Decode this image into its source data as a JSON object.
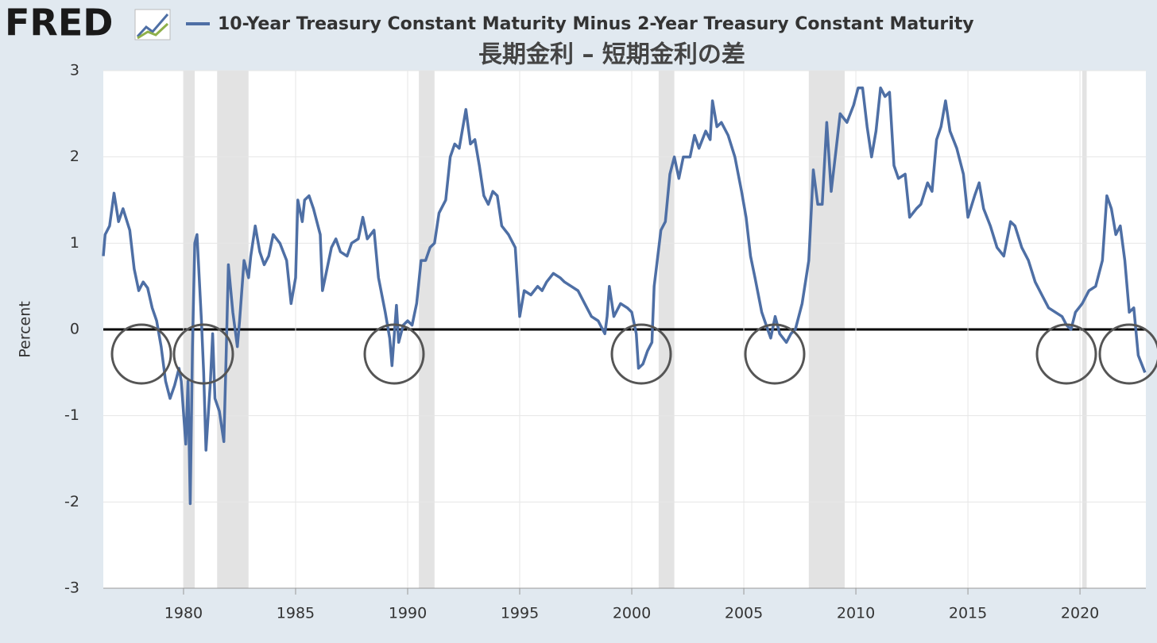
{
  "chart_data": {
    "type": "line",
    "logo": "FRED",
    "title": "長期金利 – 短期金利の差",
    "ylabel": "Percent",
    "series": [
      {
        "name": "10-Year Treasury Constant Maturity Minus 2-Year Treasury Constant Maturity",
        "color": "#4e6fa5",
        "x": [
          1976.42,
          1976.5,
          1976.7,
          1976.9,
          1977.1,
          1977.3,
          1977.6,
          1977.8,
          1978.0,
          1978.2,
          1978.4,
          1978.6,
          1978.8,
          1979.0,
          1979.2,
          1979.4,
          1979.6,
          1979.8,
          1979.9,
          1980.1,
          1980.2,
          1980.3,
          1980.4,
          1980.5,
          1980.6,
          1980.8,
          1980.9,
          1981.0,
          1981.2,
          1981.3,
          1981.4,
          1981.6,
          1981.8,
          1981.9,
          1982.0,
          1982.2,
          1982.4,
          1982.5,
          1982.7,
          1982.9,
          1983.0,
          1983.2,
          1983.4,
          1983.6,
          1983.8,
          1984.0,
          1984.3,
          1984.6,
          1984.8,
          1985.0,
          1985.1,
          1985.3,
          1985.4,
          1985.6,
          1985.8,
          1986.1,
          1986.2,
          1986.4,
          1986.6,
          1986.8,
          1987.0,
          1987.3,
          1987.5,
          1987.8,
          1988.0,
          1988.2,
          1988.5,
          1988.7,
          1989.0,
          1989.2,
          1989.3,
          1989.5,
          1989.6,
          1989.8,
          1990.0,
          1990.2,
          1990.4,
          1990.6,
          1990.8,
          1991.0,
          1991.2,
          1991.4,
          1991.7,
          1991.9,
          1992.1,
          1992.3,
          1992.6,
          1992.8,
          1993.0,
          1993.2,
          1993.4,
          1993.6,
          1993.8,
          1994.0,
          1994.2,
          1994.5,
          1994.8,
          1995.0,
          1995.2,
          1995.5,
          1995.8,
          1996.0,
          1996.2,
          1996.5,
          1996.8,
          1997.0,
          1997.3,
          1997.6,
          1997.9,
          1998.2,
          1998.5,
          1998.8,
          1998.9,
          1999.0,
          1999.2,
          1999.5,
          1999.8,
          2000.0,
          2000.2,
          2000.3,
          2000.5,
          2000.7,
          2000.8,
          2000.9,
          2001.0,
          2001.3,
          2001.5,
          2001.7,
          2001.9,
          2002.1,
          2002.3,
          2002.6,
          2002.8,
          2003.0,
          2003.3,
          2003.5,
          2003.6,
          2003.8,
          2004.0,
          2004.3,
          2004.6,
          2004.9,
          2005.1,
          2005.3,
          2005.5,
          2005.8,
          2006.0,
          2006.2,
          2006.4,
          2006.6,
          2006.9,
          2007.1,
          2007.3,
          2007.6,
          2007.9,
          2008.1,
          2008.3,
          2008.5,
          2008.7,
          2008.9,
          2009.1,
          2009.3,
          2009.6,
          2009.9,
          2010.1,
          2010.3,
          2010.5,
          2010.7,
          2010.9,
          2011.1,
          2011.3,
          2011.5,
          2011.7,
          2011.9,
          2012.2,
          2012.4,
          2012.7,
          2012.9,
          2013.2,
          2013.4,
          2013.6,
          2013.8,
          2014.0,
          2014.2,
          2014.5,
          2014.8,
          2015.0,
          2015.3,
          2015.5,
          2015.7,
          2016.0,
          2016.3,
          2016.6,
          2016.9,
          2017.1,
          2017.4,
          2017.7,
          2018.0,
          2018.3,
          2018.6,
          2018.9,
          2019.2,
          2019.4,
          2019.6,
          2019.8,
          2020.1,
          2020.4,
          2020.7,
          2021.0,
          2021.2,
          2021.4,
          2021.6,
          2021.8,
          2022.0,
          2022.2,
          2022.4,
          2022.6,
          2022.9
        ],
        "values": [
          0.85,
          1.1,
          1.2,
          1.58,
          1.25,
          1.4,
          1.15,
          0.7,
          0.45,
          0.55,
          0.48,
          0.25,
          0.1,
          -0.2,
          -0.6,
          -0.8,
          -0.65,
          -0.45,
          -0.6,
          -1.33,
          -0.6,
          -2.02,
          -0.2,
          1.0,
          1.1,
          0.1,
          -0.5,
          -1.4,
          -0.6,
          -0.05,
          -0.8,
          -0.95,
          -1.3,
          -0.3,
          0.75,
          0.2,
          -0.2,
          0.1,
          0.8,
          0.6,
          0.85,
          1.2,
          0.9,
          0.75,
          0.85,
          1.1,
          1.0,
          0.8,
          0.3,
          0.6,
          1.5,
          1.25,
          1.5,
          1.55,
          1.4,
          1.1,
          0.45,
          0.7,
          0.95,
          1.05,
          0.9,
          0.85,
          1.0,
          1.05,
          1.3,
          1.05,
          1.15,
          0.6,
          0.2,
          -0.1,
          -0.42,
          0.28,
          -0.15,
          0.05,
          0.1,
          0.05,
          0.3,
          0.8,
          0.8,
          0.95,
          1.0,
          1.35,
          1.5,
          2.0,
          2.15,
          2.1,
          2.55,
          2.15,
          2.2,
          1.9,
          1.55,
          1.45,
          1.6,
          1.55,
          1.2,
          1.1,
          0.95,
          0.15,
          0.45,
          0.4,
          0.5,
          0.45,
          0.55,
          0.65,
          0.6,
          0.55,
          0.5,
          0.45,
          0.3,
          0.15,
          0.1,
          -0.05,
          0.15,
          0.5,
          0.15,
          0.3,
          0.25,
          0.2,
          -0.05,
          -0.45,
          -0.4,
          -0.25,
          -0.2,
          -0.15,
          0.5,
          1.15,
          1.25,
          1.8,
          2.0,
          1.75,
          2.0,
          2.0,
          2.25,
          2.1,
          2.3,
          2.2,
          2.65,
          2.35,
          2.4,
          2.25,
          2.0,
          1.6,
          1.3,
          0.85,
          0.6,
          0.2,
          0.05,
          -0.1,
          0.15,
          -0.05,
          -0.15,
          -0.05,
          0.0,
          0.3,
          0.8,
          1.85,
          1.45,
          1.45,
          2.4,
          1.6,
          2.05,
          2.5,
          2.4,
          2.6,
          2.8,
          2.8,
          2.35,
          2.0,
          2.3,
          2.8,
          2.7,
          2.75,
          1.9,
          1.75,
          1.8,
          1.3,
          1.4,
          1.45,
          1.7,
          1.6,
          2.2,
          2.35,
          2.65,
          2.3,
          2.1,
          1.8,
          1.3,
          1.55,
          1.7,
          1.4,
          1.2,
          0.95,
          0.85,
          1.25,
          1.2,
          0.95,
          0.8,
          0.55,
          0.4,
          0.25,
          0.2,
          0.15,
          0.05,
          0.0,
          0.2,
          0.3,
          0.45,
          0.5,
          0.8,
          1.55,
          1.4,
          1.1,
          1.2,
          0.8,
          0.2,
          0.25,
          -0.3,
          -0.5
        ]
      }
    ],
    "recessions": [
      [
        1980.0,
        1980.5
      ],
      [
        1981.5,
        1982.9
      ],
      [
        1990.5,
        1991.2
      ],
      [
        2001.2,
        2001.9
      ],
      [
        2007.9,
        2009.5
      ],
      [
        2020.1,
        2020.3
      ]
    ],
    "xlim": [
      1976.42,
      2022.94
    ],
    "xticks": [
      1980,
      1985,
      1990,
      1995,
      2000,
      2005,
      2010,
      2015,
      2020
    ],
    "ylim": [
      -3,
      3
    ],
    "yticks": [
      -3,
      -2,
      -1,
      0,
      1,
      2,
      3
    ],
    "grid": true
  }
}
